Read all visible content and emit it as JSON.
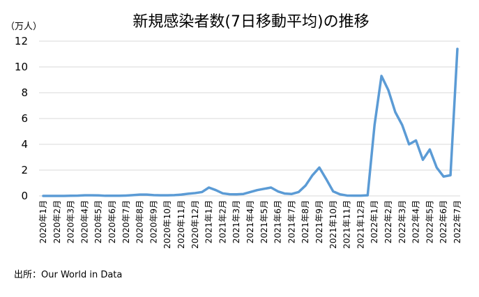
{
  "chart_data": {
    "type": "line",
    "title": "新規感染者数(7日移動平均)の推移",
    "y_unit": "（万人）",
    "source": "出所：Our World in Data",
    "categories": [
      "2020年1月",
      null,
      "2020年2月",
      null,
      "2020年3月",
      null,
      "2020年4月",
      null,
      "2020年5月",
      null,
      "2020年6月",
      null,
      "2020年7月",
      null,
      "2020年8月",
      null,
      "2020年9月",
      null,
      "2020年10月",
      null,
      "2020年11月",
      null,
      "2020年12月",
      null,
      "2021年1月",
      null,
      "2021年2月",
      null,
      "2021年3月",
      null,
      "2021年4月",
      null,
      "2021年5月",
      null,
      "2021年6月",
      null,
      "2021年7月",
      null,
      "2021年8月",
      null,
      "2021年9月",
      null,
      "2021年10月",
      null,
      "2021年11月",
      null,
      "2021年12月",
      null,
      "2022年1月",
      null,
      "2022年2月",
      null,
      "2022年3月",
      null,
      "2022年4月",
      null,
      "2022年5月",
      null,
      "2022年6月",
      null,
      "2022年7月"
    ],
    "values": [
      0,
      0,
      0,
      0,
      0.01,
      0.02,
      0.05,
      0.05,
      0.04,
      0.01,
      0.01,
      0.01,
      0.03,
      0.06,
      0.1,
      0.1,
      0.06,
      0.05,
      0.05,
      0.06,
      0.1,
      0.17,
      0.22,
      0.3,
      0.65,
      0.45,
      0.2,
      0.13,
      0.12,
      0.15,
      0.3,
      0.45,
      0.55,
      0.65,
      0.35,
      0.18,
      0.15,
      0.3,
      0.8,
      1.6,
      2.2,
      1.3,
      0.35,
      0.12,
      0.03,
      0.02,
      0.02,
      0.05,
      5.5,
      9.3,
      8.2,
      6.5,
      5.5,
      4.0,
      4.3,
      2.8,
      3.6,
      2.2,
      1.5,
      1.6,
      11.4
    ],
    "color": "#5b9bd5",
    "ylim": [
      0,
      12
    ],
    "yticks": [
      0,
      2,
      4,
      6,
      8,
      10,
      12
    ],
    "grid": true
  }
}
